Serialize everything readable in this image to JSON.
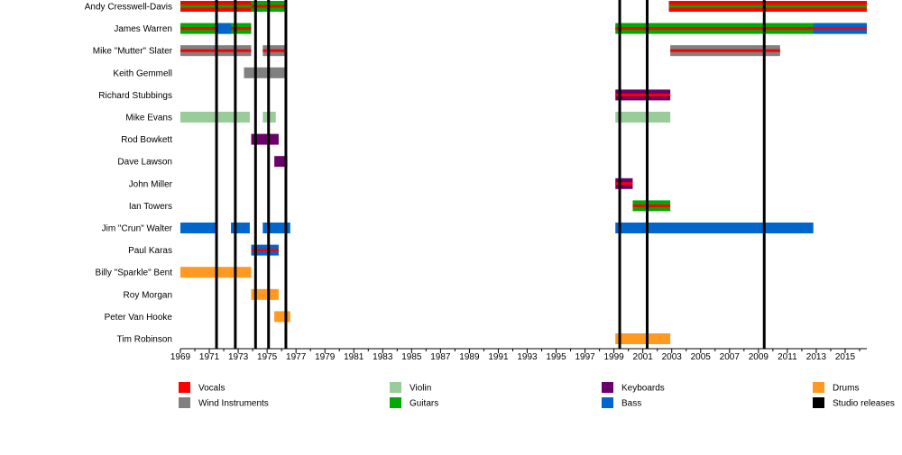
{
  "chart_data": {
    "type": "timeline",
    "title": "",
    "xlabel": "",
    "ylabel": "",
    "xlim": [
      1969,
      2016.5
    ],
    "x_ticks": [
      1969,
      1971,
      1973,
      1975,
      1977,
      1979,
      1981,
      1983,
      1985,
      1987,
      1989,
      1991,
      1993,
      1995,
      1997,
      1999,
      2001,
      2003,
      2005,
      2007,
      2009,
      2011,
      2013,
      2015
    ],
    "members": [
      "Andy Cresswell-Davis",
      "James Warren",
      "Mike \"Mutter\" Slater",
      "Keith Gemmell",
      "Richard Stubbings",
      "Mike Evans",
      "Rod Bowkett",
      "Dave Lawson",
      "John Miller",
      "Ian Towers",
      "Jim \"Crun\" Walter",
      "Paul Karas",
      "Billy \"Sparkle\" Bent",
      "Roy Morgan",
      "Peter Van Hooke",
      "Tim Robinson"
    ],
    "roles": {
      "Vocals": "#ff0000",
      "Wind Instruments": "#808080",
      "Violin": "#99cc99",
      "Guitars": "#00aa00",
      "Keyboards": "#6b006b",
      "Bass": "#0066cc",
      "Drums": "#ff9922",
      "Studio releases": "#000000"
    },
    "legend": [
      [
        "Vocals",
        "Wind Instruments"
      ],
      [
        "Violin",
        "Guitars"
      ],
      [
        "Keyboards",
        "Bass"
      ],
      [
        "Drums",
        "Studio releases"
      ]
    ],
    "legend_position": "bottom",
    "studio_releases": [
      1971.5,
      1972.8,
      1974.2,
      1975.1,
      1976.3,
      1999.4,
      2001.3,
      2009.4
    ],
    "bars": [
      {
        "member": 0,
        "start": 1969,
        "end": 1973.9,
        "base": "Vocals",
        "stripes": [
          "Guitars"
        ]
      },
      {
        "member": 0,
        "start": 1973.9,
        "end": 1976.3,
        "base": "Guitars",
        "stripes": [
          "Vocals"
        ]
      },
      {
        "member": 0,
        "start": 2002.8,
        "end": 2016.5,
        "base": "Vocals",
        "stripes": [
          "Guitars"
        ]
      },
      {
        "member": 1,
        "start": 1969,
        "end": 1973.9,
        "base": "Guitars",
        "stripes": [
          "Vocals"
        ]
      },
      {
        "member": 1,
        "start": 1971.5,
        "end": 1972.5,
        "base": "Bass",
        "stripes": []
      },
      {
        "member": 1,
        "start": 1999.1,
        "end": 2016.5,
        "base": "Guitars",
        "stripes": [
          "Vocals"
        ]
      },
      {
        "member": 1,
        "start": 2012.8,
        "end": 2016.5,
        "base": "Bass",
        "stripes": [
          "Vocals"
        ]
      },
      {
        "member": 2,
        "start": 1969,
        "end": 1973.9,
        "base": "Wind Instruments",
        "stripes": [
          "Vocals"
        ]
      },
      {
        "member": 2,
        "start": 1974.7,
        "end": 1976.3,
        "base": "Wind Instruments",
        "stripes": [
          "Vocals"
        ]
      },
      {
        "member": 2,
        "start": 2002.9,
        "end": 2010.5,
        "base": "Wind Instruments",
        "stripes": [
          "Vocals"
        ]
      },
      {
        "member": 3,
        "start": 1973.4,
        "end": 1976.3,
        "base": "Wind Instruments",
        "stripes": []
      },
      {
        "member": 4,
        "start": 1999.1,
        "end": 2002.9,
        "base": "Keyboards",
        "stripes": [
          "Vocals"
        ]
      },
      {
        "member": 5,
        "start": 1969,
        "end": 1973.8,
        "base": "Violin",
        "stripes": []
      },
      {
        "member": 5,
        "start": 1974.7,
        "end": 1975.6,
        "base": "Violin",
        "stripes": []
      },
      {
        "member": 5,
        "start": 1999.1,
        "end": 2002.9,
        "base": "Violin",
        "stripes": []
      },
      {
        "member": 6,
        "start": 1973.9,
        "end": 1975.8,
        "base": "Keyboards",
        "stripes": []
      },
      {
        "member": 7,
        "start": 1975.5,
        "end": 1976.4,
        "base": "Keyboards",
        "stripes": []
      },
      {
        "member": 8,
        "start": 1999.1,
        "end": 2000.3,
        "base": "Keyboards",
        "stripes": [
          "Vocals"
        ]
      },
      {
        "member": 9,
        "start": 2000.3,
        "end": 2002.9,
        "base": "Guitars",
        "stripes": [
          "Vocals"
        ]
      },
      {
        "member": 10,
        "start": 1969,
        "end": 1971.5,
        "base": "Bass",
        "stripes": []
      },
      {
        "member": 10,
        "start": 1972.5,
        "end": 1973.8,
        "base": "Bass",
        "stripes": []
      },
      {
        "member": 10,
        "start": 1974.7,
        "end": 1976.6,
        "base": "Bass",
        "stripes": []
      },
      {
        "member": 10,
        "start": 1999.1,
        "end": 2012.8,
        "base": "Bass",
        "stripes": []
      },
      {
        "member": 11,
        "start": 1973.9,
        "end": 1975.8,
        "base": "Bass",
        "stripes": [
          "Vocals"
        ]
      },
      {
        "member": 12,
        "start": 1969,
        "end": 1973.9,
        "base": "Drums",
        "stripes": []
      },
      {
        "member": 13,
        "start": 1973.9,
        "end": 1975.8,
        "base": "Drums",
        "stripes": []
      },
      {
        "member": 14,
        "start": 1975.5,
        "end": 1976.6,
        "base": "Drums",
        "stripes": []
      },
      {
        "member": 15,
        "start": 1999.1,
        "end": 2002.9,
        "base": "Drums",
        "stripes": []
      }
    ]
  }
}
